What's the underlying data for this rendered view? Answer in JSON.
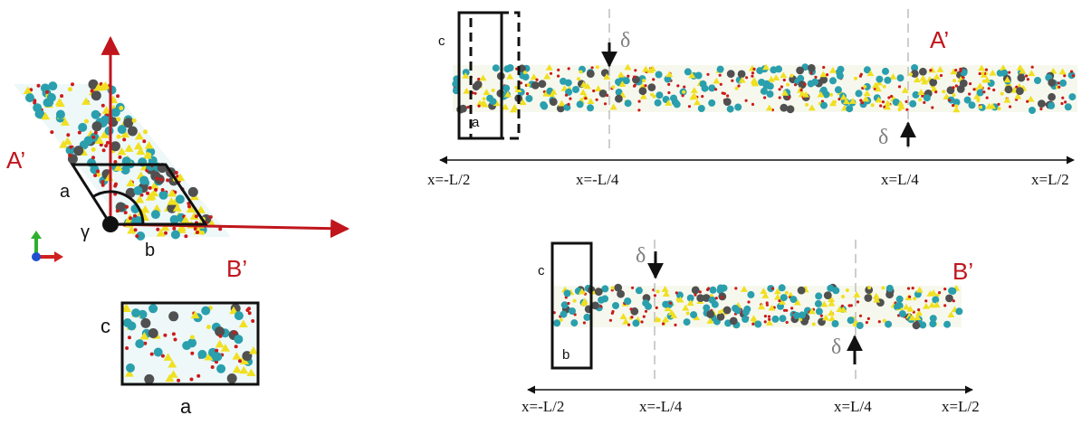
{
  "colors": {
    "red": "#c0151c",
    "grey": "#7f7f7f",
    "black": "#111111",
    "teal": "#2a9fae",
    "yellow": "#f0e020",
    "dark_atom": "#505050",
    "oxygen": "#cc1a1a"
  },
  "left_panel": {
    "label_A_prime": "A’",
    "label_B_prime": "B’",
    "label_a": "a",
    "label_b": "b",
    "label_gamma": "γ",
    "icon": "axes-triad-icon"
  },
  "bottom_left": {
    "label_c": "c",
    "label_a": "a"
  },
  "top_slab": {
    "label_A_prime": "A’",
    "label_c": "c",
    "label_a": "a",
    "delta_top": "δ",
    "delta_bottom": "δ",
    "ticks": [
      "x=-L/2",
      "x=-L/4",
      "x=L/4",
      "x=L/2"
    ]
  },
  "bottom_slab": {
    "label_B_prime": "B’",
    "label_c": "c",
    "label_b": "b",
    "delta_top": "δ",
    "delta_bottom": "δ",
    "ticks": [
      "x=-L/2",
      "x=-L/4",
      "x=L/4",
      "x=L/2"
    ]
  }
}
